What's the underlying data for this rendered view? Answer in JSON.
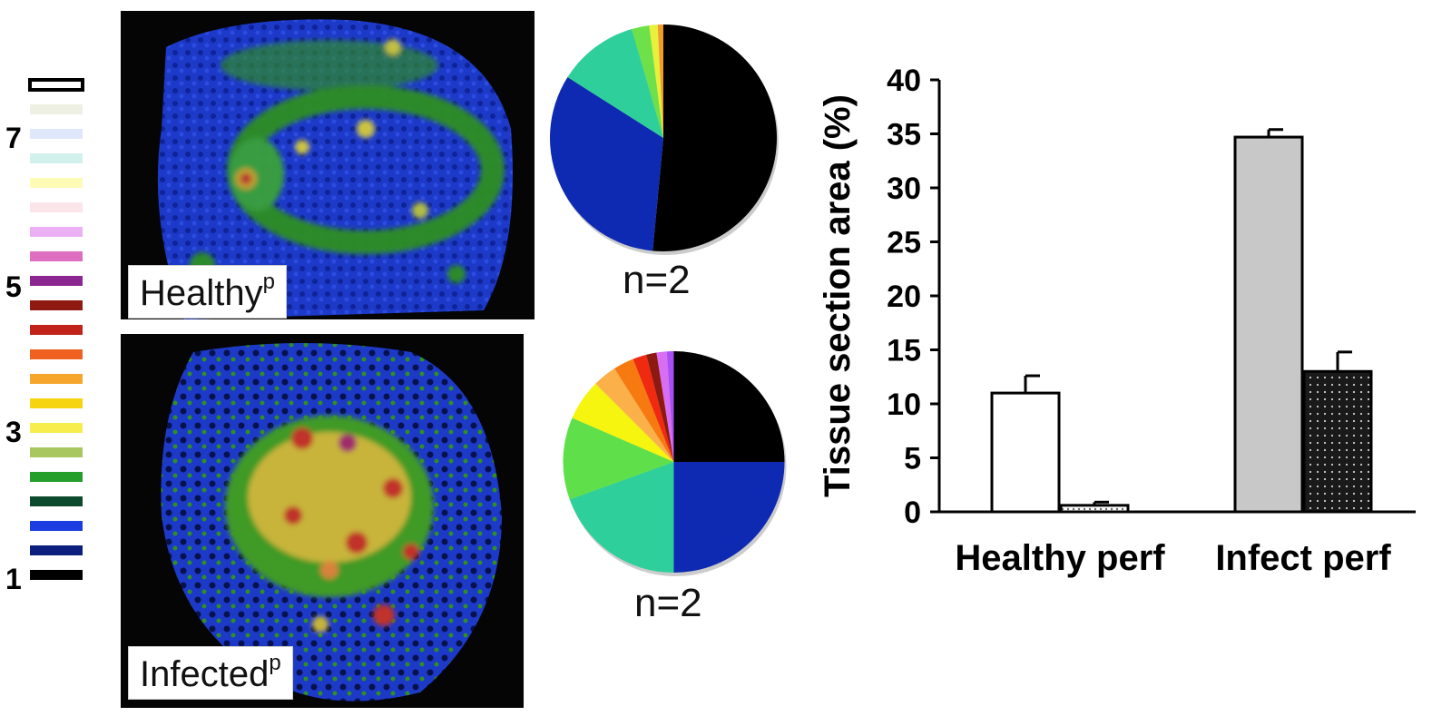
{
  "scale": {
    "labels": [
      "7",
      "5",
      "3",
      "1"
    ],
    "swatches": [
      "#ffffff",
      "#eef0e4",
      "#dfe8fb",
      "#d2f0ec",
      "#fdfbb5",
      "#fbe5ea",
      "#eab0f3",
      "#dd6ec0",
      "#8c2691",
      "#8f1a12",
      "#c1231a",
      "#f06121",
      "#f6a52d",
      "#f7d411",
      "#f7ee4d",
      "#a8c760",
      "#239e2a",
      "#0d4a2b",
      "#1a3ce0",
      "#0c1e7e",
      "#000000"
    ]
  },
  "panels": {
    "healthy": {
      "label": "Healthy",
      "superscript": "p"
    },
    "infected": {
      "label": "Infected",
      "superscript": "p"
    }
  },
  "pies": [
    {
      "n_label": "n=2",
      "slices": [
        {
          "value": 51.5,
          "color": "#000000"
        },
        {
          "value": 32.5,
          "color": "#0f2ab2"
        },
        {
          "value": 11.5,
          "color": "#2ecf9a"
        },
        {
          "value": 2.5,
          "color": "#6ee04a"
        },
        {
          "value": 1.2,
          "color": "#e8f03c"
        },
        {
          "value": 0.8,
          "color": "#f29a2a"
        }
      ]
    },
    {
      "n_label": "n=2",
      "slices": [
        {
          "value": 25,
          "color": "#000000"
        },
        {
          "value": 25,
          "color": "#0f2ab2"
        },
        {
          "value": 19.5,
          "color": "#2ecf9a"
        },
        {
          "value": 12,
          "color": "#5fe04a"
        },
        {
          "value": 6,
          "color": "#f5f510"
        },
        {
          "value": 3.5,
          "color": "#fbb04a"
        },
        {
          "value": 3,
          "color": "#f77a10"
        },
        {
          "value": 2,
          "color": "#f02a10"
        },
        {
          "value": 1.5,
          "color": "#8c1a10"
        },
        {
          "value": 1.5,
          "color": "#d86ef2"
        },
        {
          "value": 1,
          "color": "#a850f5"
        }
      ]
    }
  ],
  "chart_data": {
    "type": "bar",
    "categories": [
      "Healthy perf",
      "Infect perf"
    ],
    "series": [
      {
        "values": [
          11,
          34.7
        ],
        "errors": [
          1.6,
          0.7
        ],
        "fills": [
          "#ffffff",
          "#c8c8c8"
        ]
      },
      {
        "values": [
          0.6,
          13
        ],
        "errors": [
          0.3,
          1.8
        ],
        "fills": [
          "dots-light",
          "dots-dark"
        ]
      }
    ],
    "ylabel": "Tissue section area (%)",
    "ylim": [
      0,
      40
    ],
    "yticks": [
      "0",
      "5",
      "10",
      "15",
      "20",
      "25",
      "30",
      "35",
      "40"
    ],
    "grid": false
  }
}
